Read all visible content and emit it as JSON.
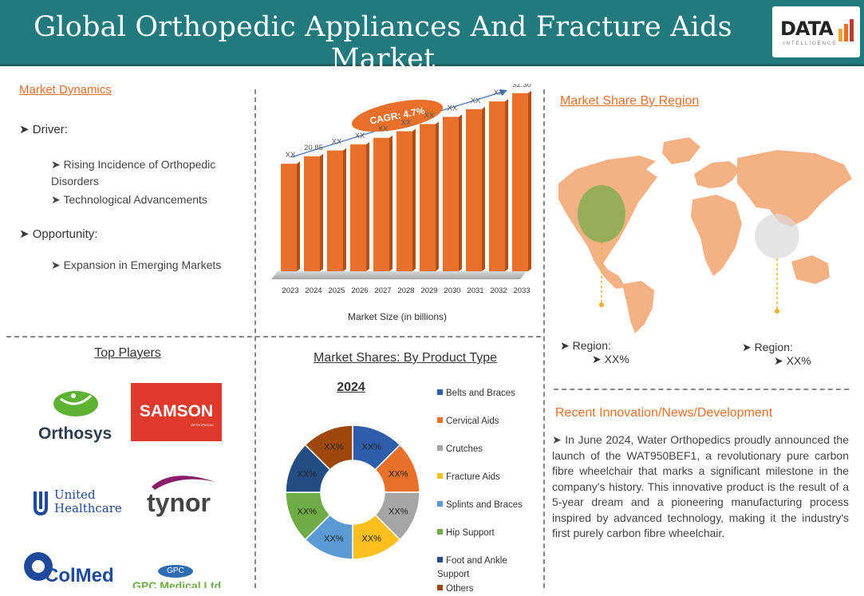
{
  "header": {
    "title": "Global Orthopedic Appliances And Fracture Aids Market",
    "brand": "DATA",
    "brand_sub": "INTELLIGENCE"
  },
  "dynamics": {
    "title": "Market Dynamics",
    "driver_label": "Driver:",
    "drivers": [
      "Rising Incidence of Orthopedic Disorders",
      "Technological Advancements"
    ],
    "opportunity_label": "Opportunity:",
    "opportunities": [
      "Expansion in Emerging Markets"
    ]
  },
  "chart_data": [
    {
      "type": "bar",
      "title": "",
      "xlabel": "Market Size (in billions)",
      "ylabel": "",
      "categories": [
        "2023",
        "2024",
        "2025",
        "2026",
        "2027",
        "2028",
        "2029",
        "2030",
        "2031",
        "2032",
        "2033"
      ],
      "values": [
        19.5,
        20.85,
        21.9,
        23.0,
        24.2,
        25.4,
        26.7,
        28.0,
        29.4,
        30.8,
        32.3
      ],
      "data_labels": [
        "XX",
        "20.85",
        "XX",
        "XX",
        "XX",
        "XX",
        "XX",
        "XX",
        "XX",
        "XX",
        "32.30"
      ],
      "annotation": "CAGR: 4.7%",
      "ylim": [
        0,
        34
      ],
      "colors": {
        "bar": "#e8702a",
        "bar_shade": "#b44f17",
        "floor": "#b9b9b9"
      }
    },
    {
      "type": "pie",
      "title": "Market Shares: By Product Type",
      "subtitle": "2024",
      "categories": [
        "Belts and Braces",
        "Cervical Aids",
        "Crutches",
        "Fracture Aids",
        "Splints and Braces",
        "Hip Support",
        "Foot and Ankle Support",
        "Others"
      ],
      "values": [
        12.5,
        12.5,
        12.5,
        12.5,
        12.5,
        12.5,
        12.5,
        12.5
      ],
      "data_labels": [
        "XX%",
        "XX%",
        "XX%",
        "XX%",
        "XX%",
        "XX%",
        "XX%",
        "XX%"
      ],
      "colors": [
        "#2e5dab",
        "#e8702a",
        "#a5a5a5",
        "#fcbf1e",
        "#5b9bd5",
        "#6fac46",
        "#234d84",
        "#9e480e"
      ]
    }
  ],
  "region": {
    "title": "Market Share By Region",
    "labels": [
      {
        "label": "Region:",
        "value": "XX%"
      },
      {
        "label": "Region:",
        "value": "XX%"
      }
    ],
    "map_color": "#f4b183",
    "highlight_1": "#6fac46",
    "highlight_2": "#d9d9d9"
  },
  "news": {
    "title": "Recent Innovation/News/Development",
    "body": "In June 2024, Water Orthopedics proudly announced the launch of the WAT950BEF1, a revolutionary pure carbon fibre wheelchair that marks a significant milestone in the company's history. This innovative product is the result of a 5-year dream and a pioneering manufacturing process inspired by advanced technology, making it the industry's first purely carbon fibre wheelchair."
  },
  "players": {
    "title": "Top Players",
    "names": [
      "Orthosys",
      "SAMSON",
      "United Healthcare",
      "tynor",
      "ColMed",
      "GPC"
    ],
    "samson_sub": "ORTHOPAEDIC",
    "gpc_sub": "GPC Medical Ltd."
  }
}
